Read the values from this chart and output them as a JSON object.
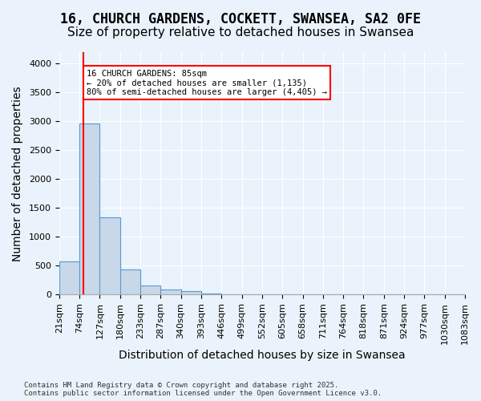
{
  "title": "16, CHURCH GARDENS, COCKETT, SWANSEA, SA2 0FE",
  "subtitle": "Size of property relative to detached houses in Swansea",
  "xlabel": "Distribution of detached houses by size in Swansea",
  "ylabel": "Number of detached properties",
  "footer_line1": "Contains HM Land Registry data © Crown copyright and database right 2025.",
  "footer_line2": "Contains public sector information licensed under the Open Government Licence v3.0.",
  "bin_labels": [
    "21sqm",
    "74sqm",
    "127sqm",
    "180sqm",
    "233sqm",
    "287sqm",
    "340sqm",
    "393sqm",
    "446sqm",
    "499sqm",
    "552sqm",
    "605sqm",
    "658sqm",
    "711sqm",
    "764sqm",
    "818sqm",
    "871sqm",
    "924sqm",
    "977sqm",
    "1030sqm",
    "1083sqm"
  ],
  "bar_values": [
    580,
    2960,
    1340,
    430,
    160,
    85,
    55,
    15,
    8,
    4,
    3,
    2,
    1,
    1,
    1,
    0,
    0,
    0,
    0,
    0
  ],
  "bar_color": "#c8d8e8",
  "bar_edge_color": "#5b9bd5",
  "ylim_max": 4200,
  "yticks": [
    0,
    500,
    1000,
    1500,
    2000,
    2500,
    3000,
    3500,
    4000
  ],
  "annotation_text": "16 CHURCH GARDENS: 85sqm\n← 20% of detached houses are smaller (1,135)\n80% of semi-detached houses are larger (4,405) →",
  "annotation_box_color": "white",
  "annotation_box_edge_color": "red",
  "red_line_color": "red",
  "background_color": "#eaf3fb",
  "grid_color": "white",
  "title_fontsize": 12,
  "subtitle_fontsize": 11,
  "tick_fontsize": 8,
  "ylabel_fontsize": 10,
  "xlabel_fontsize": 10
}
